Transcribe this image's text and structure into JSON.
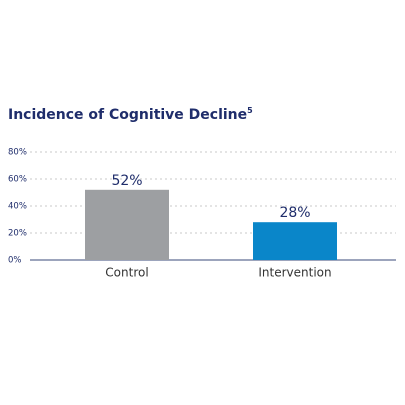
{
  "chart_data": {
    "type": "bar",
    "title": "Incidence of Cognitive Decline",
    "title_superscript": "5",
    "categories": [
      "Control",
      "Intervention"
    ],
    "values": [
      52,
      28
    ],
    "value_labels": [
      "52%",
      "28%"
    ],
    "colors": [
      "#9d9fa2",
      "#0a86c9"
    ],
    "ylim": [
      0,
      80
    ],
    "yticks": [
      {
        "value": 0,
        "label": "0%"
      },
      {
        "value": 20,
        "label": "20%"
      },
      {
        "value": 40,
        "label": "40%"
      },
      {
        "value": 60,
        "label": "60%"
      },
      {
        "value": 80,
        "label": "80%"
      }
    ],
    "grid": true
  }
}
